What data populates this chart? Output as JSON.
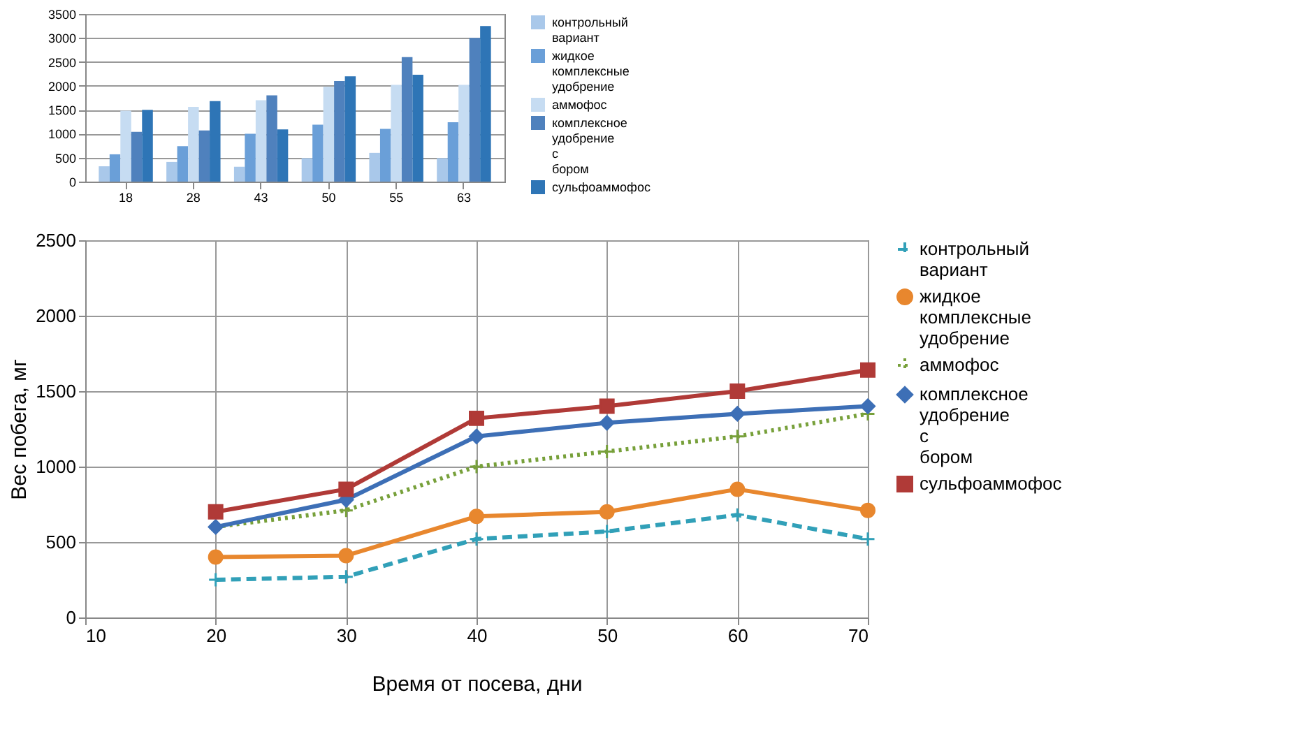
{
  "chart_data": [
    {
      "type": "bar",
      "categories": [
        "18",
        "28",
        "43",
        "50",
        "55",
        "63"
      ],
      "ylim": [
        0,
        3500
      ],
      "yticks": [
        0,
        500,
        1000,
        1500,
        2000,
        2500,
        3000,
        3500
      ],
      "grid": "y",
      "legend": "right",
      "series": [
        {
          "name": "контрольный вариант",
          "color": "#a9c8ea",
          "values": [
            320,
            410,
            310,
            490,
            600,
            490
          ]
        },
        {
          "name": "жидкое комплексные удобрение",
          "color": "#6a9fd8",
          "values": [
            570,
            740,
            1000,
            1190,
            1100,
            1240
          ]
        },
        {
          "name": "аммофос",
          "color": "#c6dcf2",
          "values": [
            1480,
            1560,
            1700,
            1980,
            2020,
            2020
          ]
        },
        {
          "name": "комплексное удобрение с бором",
          "color": "#4f81bd",
          "values": [
            1040,
            1070,
            1800,
            2100,
            2600,
            3000
          ]
        },
        {
          "name": "сульфоаммофос",
          "color": "#2e75b6",
          "values": [
            1500,
            1680,
            1090,
            2200,
            2230,
            3250
          ]
        }
      ]
    },
    {
      "type": "line",
      "xlabel": "Время от посева, дни",
      "ylabel": "Вес побега, мг",
      "x": [
        20,
        30,
        40,
        50,
        60,
        70
      ],
      "xlim": [
        10,
        70
      ],
      "xticks": [
        10,
        20,
        30,
        40,
        50,
        60,
        70
      ],
      "ylim": [
        0,
        2500
      ],
      "yticks": [
        0,
        500,
        1000,
        1500,
        2000,
        2500
      ],
      "grid": true,
      "legend": "right",
      "series": [
        {
          "name": "контрольный вариант",
          "color": "#31a0b8",
          "marker": "cross",
          "line_style": "dashed",
          "values": [
            250,
            270,
            520,
            570,
            680,
            520
          ]
        },
        {
          "name": "жидкое комплексные удобрение",
          "color": "#e8872e",
          "marker": "circle",
          "line_style": "solid",
          "values": [
            400,
            410,
            670,
            700,
            850,
            710
          ]
        },
        {
          "name": "аммофос",
          "color": "#77a03a",
          "marker": "cross",
          "line_style": "dotted",
          "values": [
            600,
            710,
            1000,
            1100,
            1200,
            1350
          ]
        },
        {
          "name": "комплексное удобрение с бором",
          "color": "#3d6fb6",
          "marker": "diamond",
          "line_style": "solid",
          "values": [
            600,
            780,
            1200,
            1290,
            1350,
            1400
          ]
        },
        {
          "name": "сульфоаммофос",
          "color": "#b03a37",
          "marker": "square",
          "line_style": "solid",
          "values": [
            700,
            850,
            1320,
            1400,
            1500,
            1640
          ]
        }
      ]
    }
  ]
}
